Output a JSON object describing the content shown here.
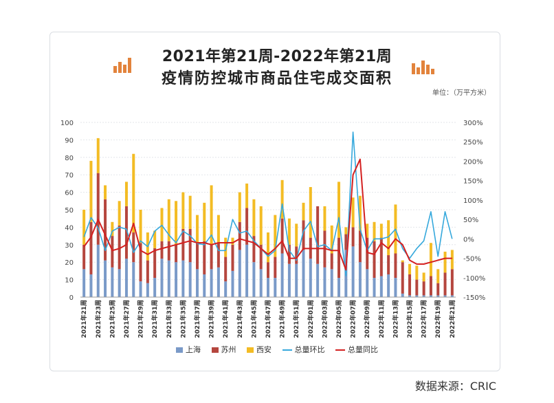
{
  "title_line1": "2021年第21周-2022年第21周",
  "title_line2": "疫情防控城市商品住宅成交面积",
  "unit": "单位：（万平方米）",
  "source": "数据来源：CRIC",
  "colors": {
    "shanghai": "#7a9ac8",
    "suzhou": "#b5463e",
    "xian": "#f3bc24",
    "hb": "#35a8dc",
    "tb": "#d42020",
    "grid": "#e3e6ea",
    "deco": "#e2833c"
  },
  "chart_data": {
    "type": "bar",
    "stacked": true,
    "categories": [
      "2021年21周",
      "2021年22周",
      "2021年23周",
      "2021年24周",
      "2021年25周",
      "2021年26周",
      "2021年27周",
      "2021年28周",
      "2021年29周",
      "2021年30周",
      "2021年31周",
      "2021年32周",
      "2021年33周",
      "2021年34周",
      "2021年35周",
      "2021年36周",
      "2021年37周",
      "2021年38周",
      "2021年39周",
      "2021年40周",
      "2021年41周",
      "2021年42周",
      "2021年43周",
      "2021年44周",
      "2021年45周",
      "2021年46周",
      "2021年47周",
      "2021年48周",
      "2021年49周",
      "2021年50周",
      "2021年51周",
      "2021年52周",
      "2022年01周",
      "2022年02周",
      "2022年03周",
      "2022年04周",
      "2022年05周",
      "2022年06周",
      "2022年07周",
      "2022年08周",
      "2022年09周",
      "2022年10周",
      "2022年11周",
      "2022年12周",
      "2022年13周",
      "2022年14周",
      "2022年15周",
      "2022年16周",
      "2022年17周",
      "2022年18周",
      "2022年19周",
      "2022年20周",
      "2022年21周"
    ],
    "tick_labels": [
      "2021年21周",
      "2021年23周",
      "2021年25周",
      "2021年27周",
      "2021年29周",
      "2021年31周",
      "2021年33周",
      "2021年35周",
      "2021年37周",
      "2021年39周",
      "2021年41周",
      "2021年43周",
      "2021年45周",
      "2021年47周",
      "2021年49周",
      "2021年51周",
      "2022年01周",
      "2022年03周",
      "2022年05周",
      "2022年07周",
      "2022年09周",
      "2022年11周",
      "2022年13周",
      "2022年15周",
      "2022年17周",
      "2022年19周",
      "2022年21周"
    ],
    "series": [
      {
        "name": "上海",
        "type": "bar",
        "axis": "left",
        "values": [
          16,
          13,
          30,
          21,
          17,
          16,
          22,
          20,
          9,
          8,
          11,
          22,
          21,
          20,
          21,
          20,
          16,
          13,
          16,
          17,
          9,
          15,
          27,
          30,
          20,
          16,
          11,
          11,
          25,
          19,
          19,
          27,
          22,
          19,
          17,
          16,
          11,
          27,
          29,
          20,
          16,
          11,
          12,
          13,
          11,
          2,
          1,
          1,
          1,
          1,
          1,
          1,
          1
        ]
      },
      {
        "name": "苏州",
        "type": "bar",
        "axis": "left",
        "values": [
          14,
          30,
          41,
          35,
          18,
          25,
          30,
          17,
          22,
          13,
          17,
          10,
          11,
          10,
          18,
          19,
          15,
          19,
          14,
          14,
          14,
          15,
          16,
          21,
          15,
          14,
          9,
          12,
          20,
          11,
          10,
          17,
          12,
          33,
          21,
          9,
          23,
          9,
          11,
          18,
          18,
          21,
          22,
          11,
          14,
          18,
          12,
          9,
          8,
          11,
          7,
          13,
          15
        ]
      },
      {
        "name": "西安",
        "type": "bar",
        "axis": "left",
        "values": [
          20,
          35,
          20,
          8,
          8,
          14,
          14,
          45,
          19,
          16,
          10,
          19,
          24,
          25,
          21,
          19,
          16,
          22,
          34,
          16,
          11,
          4,
          17,
          14,
          21,
          22,
          17,
          24,
          22,
          15,
          13,
          10,
          29,
          0,
          14,
          16,
          32,
          4,
          17,
          20,
          8,
          11,
          8,
          20,
          28,
          1,
          6,
          8,
          5,
          19,
          8,
          12,
          11
        ]
      },
      {
        "name": "总量环比",
        "type": "line",
        "axis": "right",
        "values": [
          5,
          55,
          28,
          -30,
          20,
          30,
          25,
          -35,
          -5,
          -20,
          20,
          35,
          10,
          -10,
          20,
          8,
          -12,
          -15,
          10,
          -30,
          -30,
          50,
          15,
          20,
          -5,
          -25,
          -45,
          -30,
          90,
          -30,
          -55,
          20,
          45,
          -20,
          -15,
          -30,
          55,
          -95,
          275,
          25,
          -30,
          0,
          0,
          5,
          25,
          -25,
          -50,
          -25,
          -5,
          70,
          -45,
          70,
          0
        ]
      },
      {
        "name": "总量同比",
        "type": "line",
        "axis": "right",
        "values": [
          -20,
          5,
          50,
          10,
          -30,
          -25,
          -15,
          40,
          -30,
          -40,
          -30,
          -25,
          -20,
          -15,
          -10,
          -5,
          -10,
          -10,
          -15,
          -10,
          -10,
          -10,
          0,
          -5,
          -10,
          -25,
          -40,
          -25,
          -5,
          -50,
          -50,
          -25,
          -25,
          -25,
          -25,
          -30,
          -30,
          -80,
          165,
          205,
          -35,
          -40,
          -10,
          -25,
          0,
          -15,
          -55,
          -65,
          -65,
          -60,
          -55,
          -50,
          -50
        ]
      }
    ],
    "left_axis": {
      "min": 0,
      "max": 100,
      "ticks": [
        "0",
        "10",
        "20",
        "30",
        "40",
        "50",
        "60",
        "70",
        "80",
        "90",
        "100"
      ]
    },
    "right_axis": {
      "min": -150,
      "max": 300,
      "ticks": [
        "-150%",
        "-100%",
        "-50%",
        "0%",
        "50%",
        "100%",
        "150%",
        "200%",
        "250%",
        "300%"
      ]
    },
    "legend": [
      {
        "label": "上海",
        "kind": "bar"
      },
      {
        "label": "苏州",
        "kind": "bar"
      },
      {
        "label": "西安",
        "kind": "bar"
      },
      {
        "label": "总量环比",
        "kind": "line"
      },
      {
        "label": "总量同比",
        "kind": "line"
      }
    ]
  }
}
